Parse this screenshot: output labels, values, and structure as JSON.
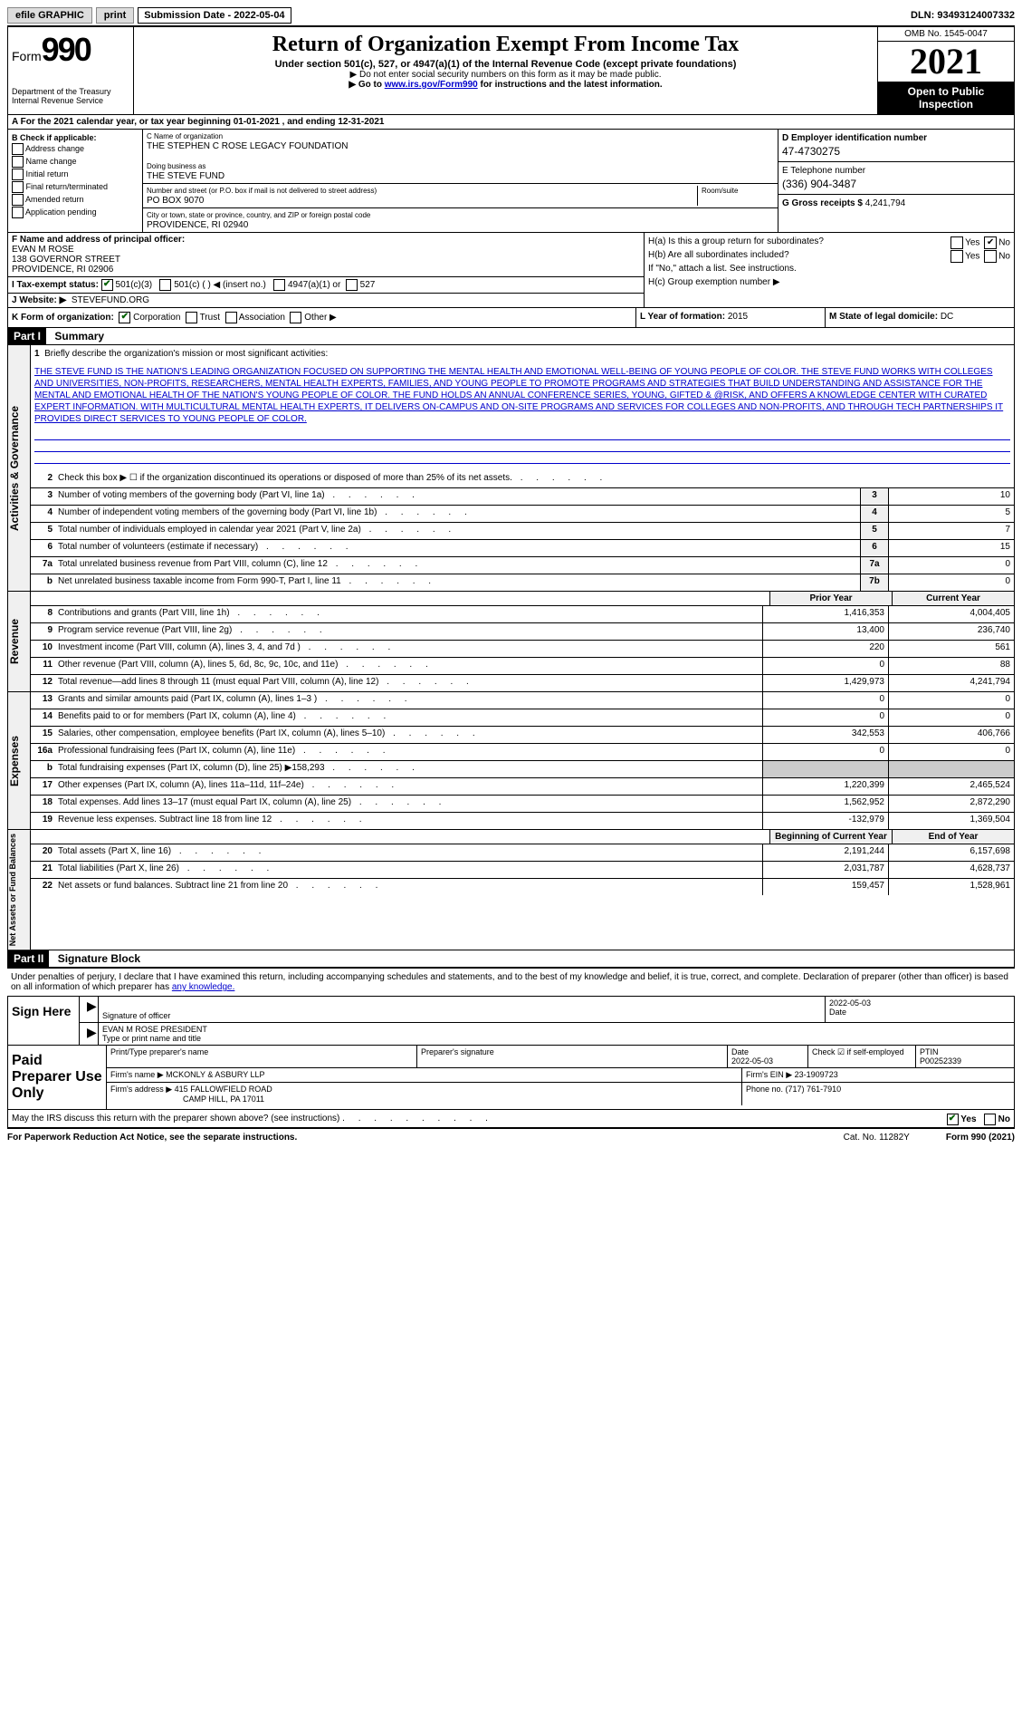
{
  "topbar": {
    "efile": "efile GRAPHIC",
    "print": "print",
    "subdate_label": "Submission Date - ",
    "subdate": "2022-05-04",
    "dln": "DLN: 93493124007332"
  },
  "header": {
    "form_prefix": "Form",
    "form_num": "990",
    "dept": "Department of the Treasury Internal Revenue Service",
    "title": "Return of Organization Exempt From Income Tax",
    "subtitle": "Under section 501(c), 527, or 4947(a)(1) of the Internal Revenue Code (except private foundations)",
    "note1": "▶ Do not enter social security numbers on this form as it may be made public.",
    "note2_pre": "▶ Go to ",
    "note2_link": "www.irs.gov/Form990",
    "note2_post": " for instructions and the latest information.",
    "omb": "OMB No. 1545-0047",
    "year": "2021",
    "open": "Open to Public Inspection"
  },
  "row_a": "A For the 2021 calendar year, or tax year beginning 01-01-2021   , and ending 12-31-2021",
  "section_b": {
    "label": "B Check if applicable:",
    "items": [
      "Address change",
      "Name change",
      "Initial return",
      "Final return/terminated",
      "Amended return",
      "Application pending"
    ]
  },
  "section_c": {
    "name_label": "C Name of organization",
    "name": "THE STEPHEN C ROSE LEGACY FOUNDATION",
    "dba_label": "Doing business as",
    "dba": "THE STEVE FUND",
    "addr_label": "Number and street (or P.O. box if mail is not delivered to street address)",
    "room_label": "Room/suite",
    "addr": "PO BOX 9070",
    "city_label": "City or town, state or province, country, and ZIP or foreign postal code",
    "city": "PROVIDENCE, RI  02940"
  },
  "section_d": {
    "ein_label": "D Employer identification number",
    "ein": "47-4730275",
    "phone_label": "E Telephone number",
    "phone": "(336) 904-3487",
    "gross_label": "G Gross receipts $ ",
    "gross": "4,241,794"
  },
  "section_f": {
    "label": "F  Name and address of principal officer:",
    "name": "EVAN M ROSE",
    "addr": "138 GOVERNOR STREET",
    "city": "PROVIDENCE, RI  02906"
  },
  "section_h": {
    "ha": "H(a)  Is this a group return for subordinates?",
    "hb": "H(b)  Are all subordinates included?",
    "hb_note": "If \"No,\" attach a list. See instructions.",
    "hc": "H(c)  Group exemption number ▶",
    "yes": "Yes",
    "no": "No"
  },
  "section_i": {
    "label": "I   Tax-exempt status:",
    "opts": [
      "501(c)(3)",
      "501(c) (   ) ◀ (insert no.)",
      "4947(a)(1) or",
      "527"
    ]
  },
  "section_j": {
    "label": "J   Website: ▶",
    "val": "STEVEFUND.ORG"
  },
  "section_k": {
    "label": "K Form of organization:",
    "opts": [
      "Corporation",
      "Trust",
      "Association",
      "Other ▶"
    ]
  },
  "section_l": {
    "label": "L Year of formation: ",
    "val": "2015"
  },
  "section_m": {
    "label": "M State of legal domicile: ",
    "val": "DC"
  },
  "part1": {
    "hdr": "Part I",
    "title": "Summary"
  },
  "mission": {
    "num": "1",
    "label": "Briefly describe the organization's mission or most significant activities:",
    "text": "THE STEVE FUND IS THE NATION'S LEADING ORGANIZATION FOCUSED ON SUPPORTING THE MENTAL HEALTH AND EMOTIONAL WELL-BEING OF YOUNG PEOPLE OF COLOR. THE STEVE FUND WORKS WITH COLLEGES AND UNIVERSITIES, NON-PROFITS, RESEARCHERS, MENTAL HEALTH EXPERTS, FAMILIES, AND YOUNG PEOPLE TO PROMOTE PROGRAMS AND STRATEGIES THAT BUILD UNDERSTANDING AND ASSISTANCE FOR THE MENTAL AND EMOTIONAL HEALTH OF THE NATION'S YOUNG PEOPLE OF COLOR. THE FUND HOLDS AN ANNUAL CONFERENCE SERIES, YOUNG, GIFTED & @RISK, AND OFFERS A KNOWLEDGE CENTER WITH CURATED EXPERT INFORMATION. WITH MULTICULTURAL MENTAL HEALTH EXPERTS, IT DELIVERS ON-CAMPUS AND ON-SITE PROGRAMS AND SERVICES FOR COLLEGES AND NON-PROFITS, AND THROUGH TECH PARTNERSHIPS IT PROVIDES DIRECT SERVICES TO YOUNG PEOPLE OF COLOR."
  },
  "gov_lines": [
    {
      "n": "2",
      "d": "Check this box ▶ ☐  if the organization discontinued its operations or disposed of more than 25% of its net assets.",
      "box": "",
      "v": ""
    },
    {
      "n": "3",
      "d": "Number of voting members of the governing body (Part VI, line 1a)",
      "box": "3",
      "v": "10"
    },
    {
      "n": "4",
      "d": "Number of independent voting members of the governing body (Part VI, line 1b)",
      "box": "4",
      "v": "5"
    },
    {
      "n": "5",
      "d": "Total number of individuals employed in calendar year 2021 (Part V, line 2a)",
      "box": "5",
      "v": "7"
    },
    {
      "n": "6",
      "d": "Total number of volunteers (estimate if necessary)",
      "box": "6",
      "v": "15"
    },
    {
      "n": "7a",
      "d": "Total unrelated business revenue from Part VIII, column (C), line 12",
      "box": "7a",
      "v": "0"
    },
    {
      "n": "b",
      "d": "Net unrelated business taxable income from Form 990-T, Part I, line 11",
      "box": "7b",
      "v": "0"
    }
  ],
  "col_hdrs": {
    "prior": "Prior Year",
    "current": "Current Year"
  },
  "rev_lines": [
    {
      "n": "8",
      "d": "Contributions and grants (Part VIII, line 1h)",
      "p": "1,416,353",
      "c": "4,004,405"
    },
    {
      "n": "9",
      "d": "Program service revenue (Part VIII, line 2g)",
      "p": "13,400",
      "c": "236,740"
    },
    {
      "n": "10",
      "d": "Investment income (Part VIII, column (A), lines 3, 4, and 7d )",
      "p": "220",
      "c": "561"
    },
    {
      "n": "11",
      "d": "Other revenue (Part VIII, column (A), lines 5, 6d, 8c, 9c, 10c, and 11e)",
      "p": "0",
      "c": "88"
    },
    {
      "n": "12",
      "d": "Total revenue—add lines 8 through 11 (must equal Part VIII, column (A), line 12)",
      "p": "1,429,973",
      "c": "4,241,794"
    }
  ],
  "exp_lines": [
    {
      "n": "13",
      "d": "Grants and similar amounts paid (Part IX, column (A), lines 1–3 )",
      "p": "0",
      "c": "0"
    },
    {
      "n": "14",
      "d": "Benefits paid to or for members (Part IX, column (A), line 4)",
      "p": "0",
      "c": "0"
    },
    {
      "n": "15",
      "d": "Salaries, other compensation, employee benefits (Part IX, column (A), lines 5–10)",
      "p": "342,553",
      "c": "406,766"
    },
    {
      "n": "16a",
      "d": "Professional fundraising fees (Part IX, column (A), line 11e)",
      "p": "0",
      "c": "0"
    },
    {
      "n": "b",
      "d": "Total fundraising expenses (Part IX, column (D), line 25) ▶158,293",
      "p": "",
      "c": "",
      "shade": true
    },
    {
      "n": "17",
      "d": "Other expenses (Part IX, column (A), lines 11a–11d, 11f–24e)",
      "p": "1,220,399",
      "c": "2,465,524"
    },
    {
      "n": "18",
      "d": "Total expenses. Add lines 13–17 (must equal Part IX, column (A), line 25)",
      "p": "1,562,952",
      "c": "2,872,290"
    },
    {
      "n": "19",
      "d": "Revenue less expenses. Subtract line 18 from line 12",
      "p": "-132,979",
      "c": "1,369,504"
    }
  ],
  "net_hdrs": {
    "begin": "Beginning of Current Year",
    "end": "End of Year"
  },
  "net_lines": [
    {
      "n": "20",
      "d": "Total assets (Part X, line 16)",
      "p": "2,191,244",
      "c": "6,157,698"
    },
    {
      "n": "21",
      "d": "Total liabilities (Part X, line 26)",
      "p": "2,031,787",
      "c": "4,628,737"
    },
    {
      "n": "22",
      "d": "Net assets or fund balances. Subtract line 21 from line 20",
      "p": "159,457",
      "c": "1,528,961"
    }
  ],
  "side_labels": {
    "gov": "Activities & Governance",
    "rev": "Revenue",
    "exp": "Expenses",
    "net": "Net Assets or Fund Balances"
  },
  "part2": {
    "hdr": "Part II",
    "title": "Signature Block"
  },
  "sig": {
    "intro": "Under penalties of perjury, I declare that I have examined this return, including accompanying schedules and statements, and to the best of my knowledge and belief, it is true, correct, and complete. Declaration of preparer (other than officer) is based on all information of which preparer has ",
    "intro_link": "any knowledge.",
    "sign_here": "Sign Here",
    "sig_officer": "Signature of officer",
    "date_label": "Date",
    "date": "2022-05-03",
    "name": "EVAN M ROSE PRESIDENT",
    "name_label": "Type or print name and title"
  },
  "prep": {
    "label": "Paid Preparer Use Only",
    "name_label": "Print/Type preparer's name",
    "sig_label": "Preparer's signature",
    "date_label": "Date",
    "date": "2022-05-03",
    "check_label": "Check ☑ if self-employed",
    "ptin_label": "PTIN",
    "ptin": "P00252339",
    "firm_name_label": "Firm's name    ▶",
    "firm_name": "MCKONLY & ASBURY LLP",
    "firm_ein_label": "Firm's EIN ▶",
    "firm_ein": "23-1909723",
    "firm_addr_label": "Firm's address ▶",
    "firm_addr": "415 FALLOWFIELD ROAD",
    "firm_city": "CAMP HILL, PA  17011",
    "phone_label": "Phone no. ",
    "phone": "(717) 761-7910"
  },
  "discuss": {
    "q": "May the IRS discuss this return with the preparer shown above? (see instructions)",
    "yes": "Yes",
    "no": "No"
  },
  "footer": {
    "l": "For Paperwork Reduction Act Notice, see the separate instructions.",
    "m": "Cat. No. 11282Y",
    "r": "Form 990 (2021)"
  }
}
